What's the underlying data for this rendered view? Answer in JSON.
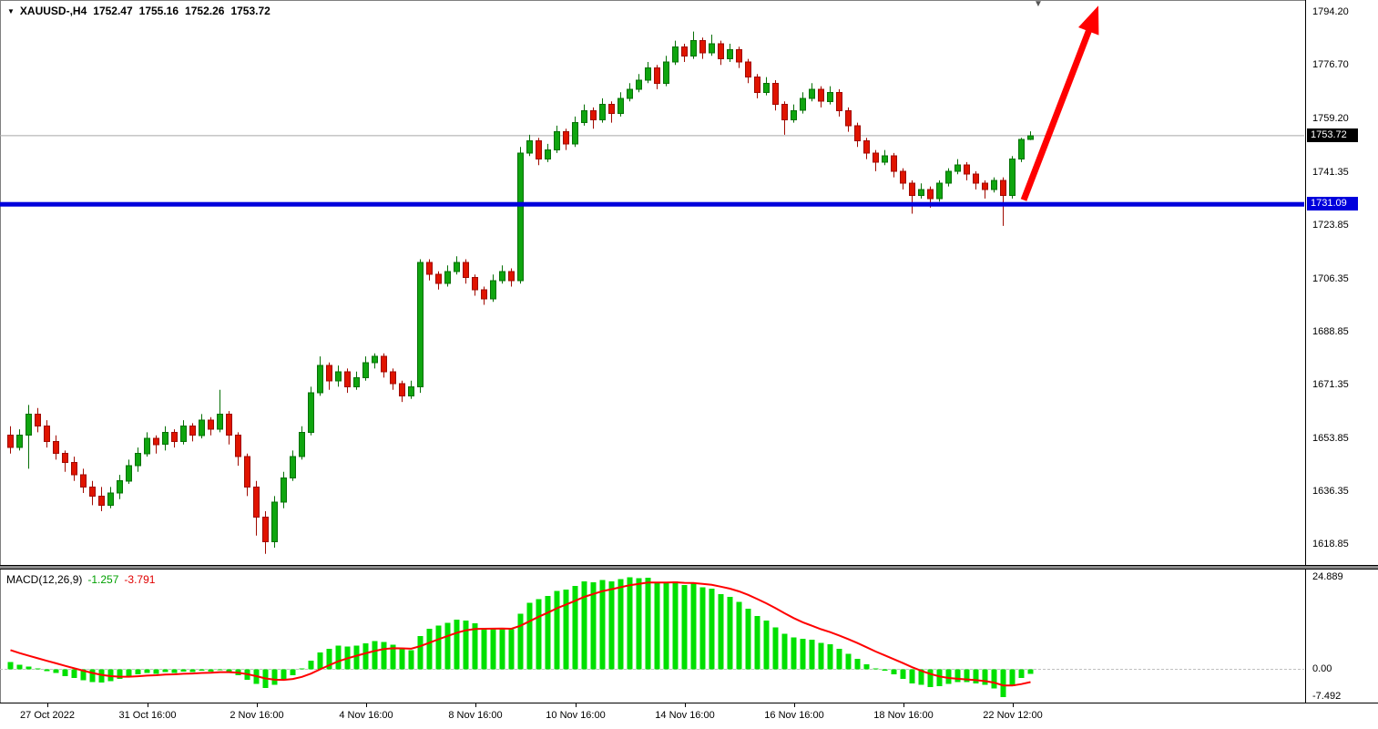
{
  "title": {
    "symbol_period": "XAUUSD-,H4",
    "open": "1752.47",
    "high": "1755.16",
    "low": "1752.26",
    "close": "1753.72"
  },
  "icons": {
    "symbol_dropdown": "▼",
    "chart_shift": "▼"
  },
  "colors": {
    "background": "#ffffff",
    "bull": "#0fa50f",
    "bear": "#e01400",
    "bull_edge": "#077007",
    "bear_edge": "#a00a00",
    "price_line": "#a8a8a8",
    "price_tag_bg": "#000000",
    "price_tag_text": "#ffffff",
    "hline": "#0000dc",
    "arrow": "#ff0000",
    "macd_hist": "#00e000",
    "macd_signal": "#ff0000",
    "macd_zero_line": "#c0c0c0",
    "axis_text": "#000000"
  },
  "macd": {
    "name": "MACD(12,26,9)",
    "value_main": "-1.257",
    "value_signal": "-3.791"
  },
  "objects": {
    "hline": {
      "price": 1731.09,
      "label": "1731.09"
    },
    "arrow": {
      "from_i": 111.6,
      "from_price": 1732.5,
      "to_i": 119.8,
      "to_price": 1796.5
    }
  },
  "shift_marker": {
    "i": 113.2
  },
  "time_axis": {
    "labels": [
      {
        "text": "27 Oct 2022",
        "i": 4
      },
      {
        "text": "31 Oct 16:00",
        "i": 15
      },
      {
        "text": "2 Nov 16:00",
        "i": 27
      },
      {
        "text": "4 Nov 16:00",
        "i": 39
      },
      {
        "text": "8 Nov 16:00",
        "i": 51
      },
      {
        "text": "10 Nov 16:00",
        "i": 62
      },
      {
        "text": "14 Nov 16:00",
        "i": 74
      },
      {
        "text": "16 Nov 16:00",
        "i": 86
      },
      {
        "text": "18 Nov 16:00",
        "i": 98
      },
      {
        "text": "22 Nov 12:00",
        "i": 110
      }
    ]
  },
  "chart_data": [
    {
      "type": "candlestick",
      "title": "XAUUSD-,H4",
      "ylim": [
        1612.3,
        1798.4
      ],
      "x0": 8,
      "dx": 10,
      "body_width": 7,
      "y_axis_labels": [
        "1794.20",
        "1776.70",
        "1759.20",
        "1741.35",
        "1723.85",
        "1706.35",
        "1688.85",
        "1671.35",
        "1653.85",
        "1636.35",
        "1618.85"
      ],
      "current_price": 1753.72,
      "candles": [
        [
          1655,
          1658,
          1649,
          1651
        ],
        [
          1651,
          1657,
          1650,
          1655
        ],
        [
          1655,
          1665,
          1644,
          1662
        ],
        [
          1662,
          1664,
          1656,
          1658
        ],
        [
          1658,
          1660,
          1651,
          1653
        ],
        [
          1653,
          1655,
          1647,
          1649
        ],
        [
          1649,
          1650,
          1643,
          1646
        ],
        [
          1646,
          1648,
          1640,
          1642
        ],
        [
          1642,
          1644,
          1636,
          1638
        ],
        [
          1638,
          1640,
          1632,
          1635
        ],
        [
          1635,
          1638,
          1630,
          1632
        ],
        [
          1632,
          1638,
          1631,
          1636
        ],
        [
          1636,
          1642,
          1634,
          1640
        ],
        [
          1640,
          1647,
          1639,
          1645
        ],
        [
          1645,
          1651,
          1643,
          1649
        ],
        [
          1649,
          1656,
          1648,
          1654
        ],
        [
          1654,
          1655,
          1649,
          1652
        ],
        [
          1652,
          1658,
          1650,
          1656
        ],
        [
          1656,
          1657,
          1651,
          1653
        ],
        [
          1653,
          1660,
          1652,
          1658
        ],
        [
          1658,
          1659,
          1653,
          1655
        ],
        [
          1655,
          1662,
          1654,
          1660
        ],
        [
          1660,
          1661,
          1655,
          1657
        ],
        [
          1657,
          1670,
          1656,
          1662
        ],
        [
          1662,
          1663,
          1652,
          1655
        ],
        [
          1655,
          1656,
          1645,
          1648
        ],
        [
          1648,
          1649,
          1635,
          1638
        ],
        [
          1638,
          1640,
          1622,
          1628
        ],
        [
          1628,
          1630,
          1616,
          1620
        ],
        [
          1620,
          1635,
          1618,
          1633
        ],
        [
          1633,
          1643,
          1631,
          1641
        ],
        [
          1641,
          1650,
          1640,
          1648
        ],
        [
          1648,
          1658,
          1647,
          1656
        ],
        [
          1656,
          1671,
          1655,
          1669
        ],
        [
          1669,
          1681,
          1668,
          1678
        ],
        [
          1678,
          1679,
          1670,
          1673
        ],
        [
          1673,
          1678,
          1671,
          1676
        ],
        [
          1676,
          1677,
          1669,
          1671
        ],
        [
          1671,
          1676,
          1670,
          1674
        ],
        [
          1674,
          1681,
          1673,
          1679
        ],
        [
          1679,
          1682,
          1677,
          1681
        ],
        [
          1681,
          1682,
          1674,
          1676
        ],
        [
          1676,
          1677,
          1670,
          1672
        ],
        [
          1672,
          1673,
          1666,
          1668
        ],
        [
          1668,
          1673,
          1667,
          1671
        ],
        [
          1671,
          1713,
          1669,
          1712
        ],
        [
          1712,
          1713,
          1706,
          1708
        ],
        [
          1708,
          1709,
          1703,
          1705
        ],
        [
          1705,
          1711,
          1704,
          1709
        ],
        [
          1709,
          1714,
          1708,
          1712
        ],
        [
          1712,
          1713,
          1705,
          1707
        ],
        [
          1707,
          1708,
          1701,
          1703
        ],
        [
          1703,
          1704,
          1698,
          1700
        ],
        [
          1700,
          1708,
          1699,
          1706
        ],
        [
          1706,
          1711,
          1705,
          1709
        ],
        [
          1709,
          1710,
          1704,
          1706
        ],
        [
          1706,
          1750,
          1705,
          1748
        ],
        [
          1748,
          1754,
          1747,
          1752
        ],
        [
          1752,
          1753,
          1744,
          1746
        ],
        [
          1746,
          1751,
          1745,
          1749
        ],
        [
          1749,
          1757,
          1748,
          1755
        ],
        [
          1755,
          1756,
          1749,
          1751
        ],
        [
          1751,
          1760,
          1750,
          1758
        ],
        [
          1758,
          1764,
          1757,
          1762
        ],
        [
          1762,
          1763,
          1756,
          1759
        ],
        [
          1759,
          1766,
          1758,
          1764
        ],
        [
          1764,
          1765,
          1758,
          1761
        ],
        [
          1761,
          1768,
          1760,
          1766
        ],
        [
          1766,
          1771,
          1765,
          1769
        ],
        [
          1769,
          1774,
          1768,
          1772
        ],
        [
          1772,
          1778,
          1771,
          1776
        ],
        [
          1776,
          1777,
          1769,
          1771
        ],
        [
          1771,
          1780,
          1770,
          1778
        ],
        [
          1778,
          1785,
          1777,
          1783
        ],
        [
          1783,
          1784,
          1778,
          1780
        ],
        [
          1780,
          1788,
          1779,
          1785
        ],
        [
          1785,
          1786,
          1779,
          1781
        ],
        [
          1781,
          1787,
          1780,
          1784
        ],
        [
          1784,
          1785,
          1777,
          1779
        ],
        [
          1779,
          1784,
          1778,
          1782
        ],
        [
          1782,
          1783,
          1776,
          1778
        ],
        [
          1778,
          1779,
          1771,
          1773
        ],
        [
          1773,
          1774,
          1766,
          1768
        ],
        [
          1768,
          1773,
          1767,
          1771
        ],
        [
          1771,
          1772,
          1762,
          1764
        ],
        [
          1764,
          1765,
          1754,
          1759
        ],
        [
          1759,
          1764,
          1758,
          1762
        ],
        [
          1762,
          1768,
          1761,
          1766
        ],
        [
          1766,
          1771,
          1765,
          1769
        ],
        [
          1769,
          1770,
          1763,
          1765
        ],
        [
          1765,
          1770,
          1764,
          1768
        ],
        [
          1768,
          1769,
          1760,
          1762
        ],
        [
          1762,
          1763,
          1755,
          1757
        ],
        [
          1757,
          1758,
          1750,
          1752
        ],
        [
          1752,
          1753,
          1746,
          1748
        ],
        [
          1748,
          1749,
          1742,
          1745
        ],
        [
          1745,
          1749,
          1744,
          1747
        ],
        [
          1747,
          1748,
          1740,
          1742
        ],
        [
          1742,
          1743,
          1736,
          1738
        ],
        [
          1738,
          1739,
          1728,
          1734
        ],
        [
          1734,
          1738,
          1733,
          1736
        ],
        [
          1736,
          1737,
          1730,
          1733
        ],
        [
          1733,
          1739,
          1732,
          1738
        ],
        [
          1738,
          1743,
          1737,
          1742
        ],
        [
          1742,
          1746,
          1741,
          1744
        ],
        [
          1744,
          1745,
          1739,
          1741
        ],
        [
          1741,
          1742,
          1736,
          1738
        ],
        [
          1738,
          1739,
          1733,
          1736
        ],
        [
          1736,
          1740,
          1735,
          1739
        ],
        [
          1739,
          1740,
          1724,
          1734
        ],
        [
          1734,
          1747,
          1733,
          1746
        ],
        [
          1746,
          1753,
          1745,
          1752.5
        ],
        [
          1752.47,
          1755.16,
          1752.26,
          1753.72
        ]
      ]
    },
    {
      "type": "bar+line",
      "title": "MACD(12,26,9)",
      "ylim": [
        -9,
        27
      ],
      "signal_period": 9,
      "signal_seed": 6.0,
      "current_macd": -1.257,
      "current_signal": -3.791,
      "axis_labels": [
        {
          "text": "24.889",
          "v": 24.889
        },
        {
          "text": "0.00",
          "v": 0
        },
        {
          "text": "-7.492",
          "v": -7.492
        }
      ],
      "values": [
        2.0,
        1.2,
        0.8,
        0.2,
        -0.5,
        -1.0,
        -1.8,
        -2.4,
        -3.0,
        -3.4,
        -3.6,
        -3.2,
        -2.6,
        -2.0,
        -1.4,
        -1.0,
        -1.2,
        -0.8,
        -1.0,
        -0.6,
        -0.8,
        -0.4,
        -0.6,
        -0.2,
        -0.8,
        -1.6,
        -2.8,
        -4.0,
        -5.0,
        -4.2,
        -3.0,
        -1.6,
        0.2,
        2.4,
        4.6,
        5.6,
        6.4,
        6.2,
        6.4,
        7.0,
        7.6,
        7.4,
        6.6,
        5.6,
        5.2,
        9.0,
        11.0,
        11.8,
        12.6,
        13.4,
        13.2,
        12.4,
        11.2,
        11.0,
        11.2,
        10.8,
        15.0,
        18.0,
        19.0,
        19.8,
        21.2,
        21.6,
        22.6,
        23.8,
        23.6,
        24.2,
        23.8,
        24.4,
        24.889,
        24.6,
        24.8,
        23.6,
        23.4,
        23.8,
        22.8,
        23.2,
        22.2,
        21.8,
        20.4,
        19.6,
        18.2,
        16.4,
        14.4,
        13.2,
        11.4,
        9.6,
        8.6,
        8.2,
        8.0,
        7.2,
        6.8,
        5.6,
        4.2,
        2.8,
        1.4,
        0.2,
        -0.4,
        -1.4,
        -2.6,
        -3.8,
        -4.2,
        -4.8,
        -4.6,
        -4.0,
        -3.4,
        -3.4,
        -3.8,
        -4.2,
        -5.2,
        -7.492,
        -4.5,
        -2.4,
        -1.257
      ]
    }
  ]
}
